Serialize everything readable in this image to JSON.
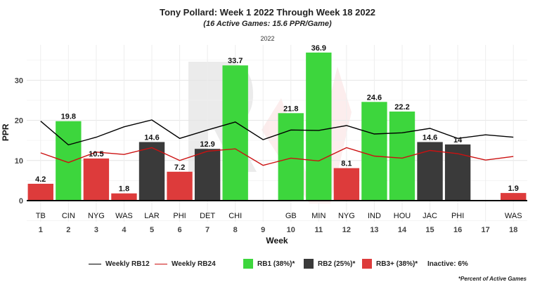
{
  "title": "Tony Pollard: Week 1 2022 Through Week 18 2022",
  "subtitle": "(16 Active Games: 15.6 PPR/Game)",
  "facet_label": "2022",
  "footnote": "*Percent of Active Games",
  "legend": {
    "rb12": "Weekly RB12",
    "rb24": "Weekly RB24",
    "rb1": "RB1 (38%)*",
    "rb2": "RB2 (25%)*",
    "rb3": "RB3+ (38%)*",
    "inactive": "Inactive: 6%"
  },
  "colors": {
    "rb1": "#3dd63d",
    "rb2": "#3a3a3a",
    "rb3": "#dd3b3b",
    "rb12_line": "#000000",
    "rb24_line": "#cc1111"
  },
  "chart_data": {
    "type": "bar",
    "xlabel": "Week",
    "ylabel": "PPR",
    "ylim": [
      -5,
      40
    ],
    "yticks": [
      0,
      10,
      20,
      30
    ],
    "grid": true,
    "weeks": [
      1,
      2,
      3,
      4,
      5,
      6,
      7,
      8,
      9,
      10,
      11,
      12,
      13,
      14,
      15,
      16,
      17,
      18
    ],
    "opponents": [
      "TB",
      "CIN",
      "NYG",
      "WAS",
      "LAR",
      "PHI",
      "DET",
      "CHI",
      "",
      "GB",
      "MIN",
      "NYG",
      "IND",
      "HOU",
      "JAC",
      "PHI",
      "",
      "WAS"
    ],
    "values": [
      4.2,
      19.8,
      10.5,
      1.8,
      14.6,
      7.2,
      12.9,
      33.7,
      null,
      21.8,
      36.9,
      8.1,
      24.6,
      22.2,
      14.6,
      14,
      null,
      1.9
    ],
    "value_labels": [
      "4.2",
      "19.8",
      "10.5",
      "1.8",
      "14.6",
      "7.2",
      "12.9",
      "33.7",
      "",
      "21.8",
      "36.9",
      "8.1",
      "24.6",
      "22.2",
      "14.6",
      "14",
      "",
      "1.9"
    ],
    "tiers": [
      "rb3",
      "rb1",
      "rb3",
      "rb3",
      "rb2",
      "rb3",
      "rb2",
      "rb1",
      "",
      "rb1",
      "rb1",
      "rb3",
      "rb1",
      "rb1",
      "rb2",
      "rb2",
      "",
      "rb3"
    ],
    "series": [
      {
        "name": "Weekly RB12",
        "values": [
          19.8,
          13.9,
          15.8,
          18.4,
          20.1,
          15.5,
          17.6,
          19.6,
          15.2,
          17.6,
          17.5,
          18.7,
          16.6,
          16.9,
          18.0,
          15.5,
          16.4,
          15.8
        ]
      },
      {
        "name": "Weekly RB24",
        "values": [
          11.9,
          9.5,
          12.1,
          11.5,
          13.2,
          10.0,
          12.3,
          12.9,
          8.8,
          10.6,
          9.9,
          13.2,
          11.1,
          10.6,
          12.5,
          11.7,
          10.1,
          11.0
        ]
      }
    ]
  }
}
